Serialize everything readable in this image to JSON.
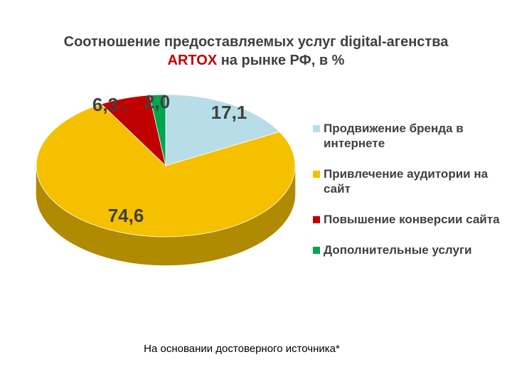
{
  "title": {
    "line1": "Соотношение предоставляемых услуг digital-агенства",
    "brand": "ARTOX",
    "line2_rest": " на рынке РФ, в %"
  },
  "chart_data": {
    "type": "pie",
    "title": "Соотношение предоставляемых услуг digital-агенства ARTOX на рынке РФ, в %",
    "categories": [
      "Продвижение бренда в интернете",
      "Привлечение аудитории на сайт",
      "Повышение конверсии сайта",
      "Дополнительные услуги"
    ],
    "values": [
      17.1,
      74.6,
      6.3,
      2.0
    ],
    "data_labels": [
      "17,1",
      "74,6",
      "6,3",
      "2,0"
    ],
    "colors": [
      "#b7dde8",
      "#f5c000",
      "#c00000",
      "#00a550"
    ],
    "side_colors": [
      "#7fb0bf",
      "#b08a00",
      "#800000",
      "#007a3a"
    ],
    "legend_position": "right",
    "style": "3d"
  },
  "footnote": "На основании достоверного источника*"
}
